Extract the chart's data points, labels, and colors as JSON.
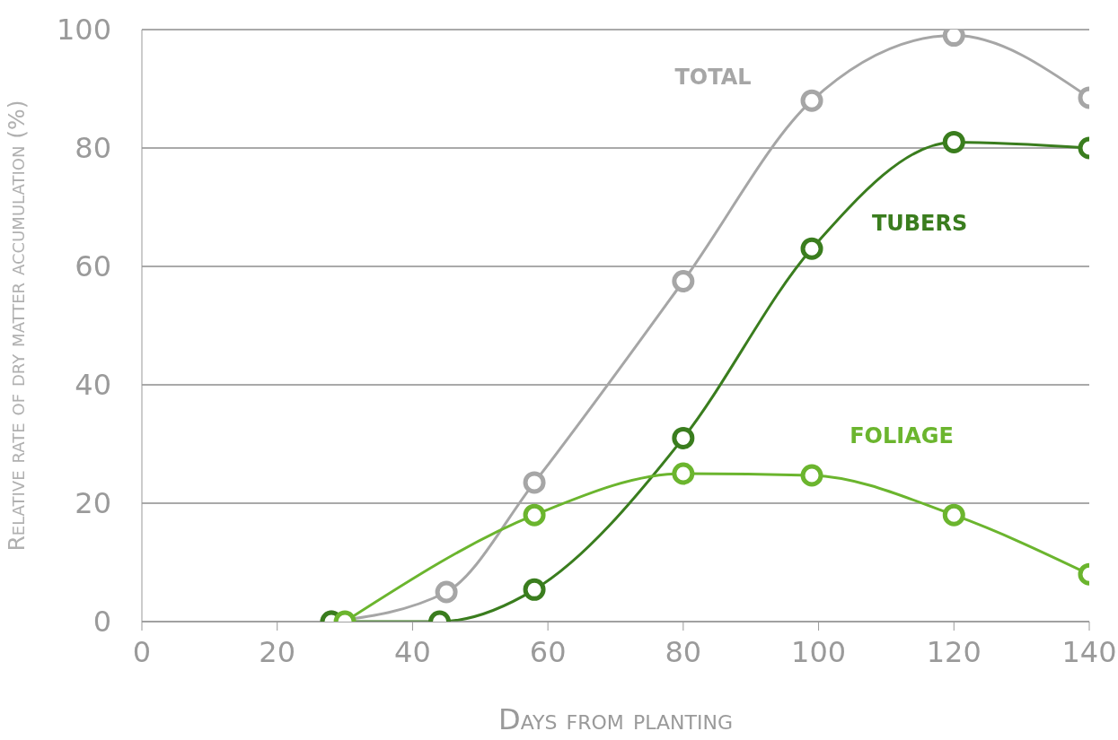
{
  "chart_data": {
    "type": "line",
    "xlabel": "Days from planting",
    "ylabel": "Relative rate of dry matter accumulation (%)",
    "xlim": [
      0,
      140
    ],
    "xticks": [
      0,
      20,
      40,
      60,
      80,
      100,
      120,
      140
    ],
    "ylim": [
      0,
      100
    ],
    "yticks": [
      0,
      20,
      40,
      60,
      80,
      100
    ],
    "grid": "y",
    "legend": false,
    "marker": "circle",
    "line_style": "solid",
    "series": [
      {
        "name": "TOTAL",
        "color": "#a6a6a6",
        "x": [
          28,
          45,
          58,
          80,
          99,
          120,
          140
        ],
        "values": [
          0,
          5,
          23.5,
          57.5,
          88,
          99,
          88.5
        ]
      },
      {
        "name": "TUBERS",
        "color": "#3a7d1e",
        "x": [
          28,
          44,
          58,
          80,
          99,
          120,
          140
        ],
        "values": [
          0,
          0,
          5.4,
          31,
          63,
          81,
          80
        ]
      },
      {
        "name": "FOLIAGE",
        "color": "#6bb52e",
        "x": [
          30,
          58,
          80,
          99,
          120,
          140
        ],
        "values": [
          0,
          18,
          25,
          24.7,
          18,
          8
        ]
      }
    ]
  }
}
